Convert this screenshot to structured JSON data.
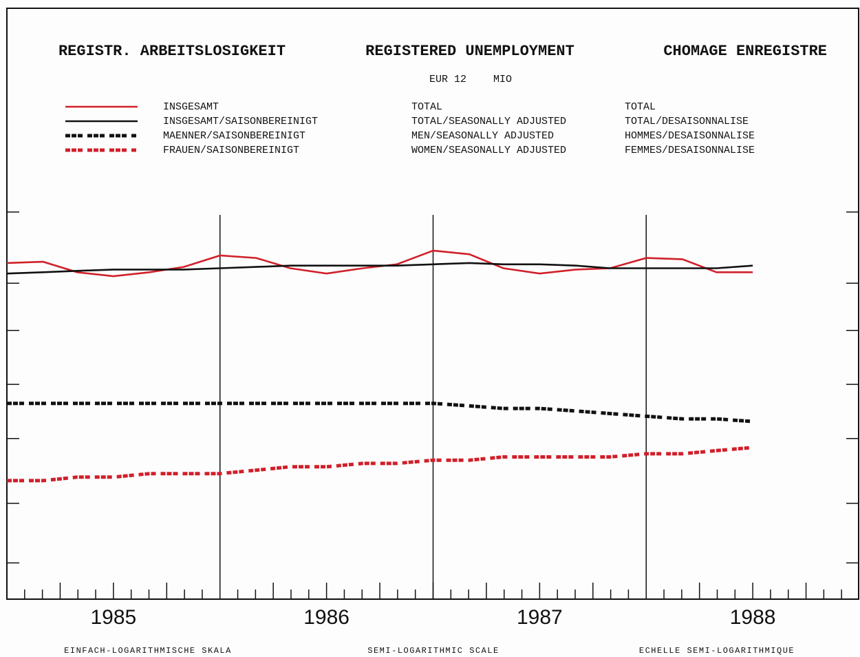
{
  "chart_data": {
    "type": "line",
    "title": [
      "REGISTR. ARBEITSLOSIGKEIT",
      "REGISTERED UNEMPLOYMENT",
      "CHOMAGE ENREGISTRE"
    ],
    "subtitle": [
      "EUR 12",
      "MIO"
    ],
    "footer": [
      "EINFACH-LOGARITHMISCHE SKALA",
      "SEMI-LOGARITHMIC SCALE",
      "ECHELLE SEMI-LOGARITHMIQUE"
    ],
    "x": [
      1985,
      1985.17,
      1985.33,
      1985.5,
      1985.67,
      1985.83,
      1986,
      1986.17,
      1986.33,
      1986.5,
      1986.67,
      1986.83,
      1987,
      1987.17,
      1987.33,
      1987.5,
      1987.67,
      1987.83,
      1988,
      1988.17,
      1988.33,
      1988.5
    ],
    "xlim": [
      1985,
      1989
    ],
    "xticks": [
      {
        "value": 1985.5,
        "label": "1985"
      },
      {
        "value": 1986.5,
        "label": "1986"
      },
      {
        "value": 1987.5,
        "label": "1987"
      },
      {
        "value": 1988.5,
        "label": "1988"
      }
    ],
    "year_lines": [
      1986,
      1987,
      1988
    ],
    "ylim": [
      3.37,
      55
    ],
    "yticks": [
      21,
      15,
      12,
      9.3,
      7.2,
      5.3,
      4
    ],
    "log_y": true,
    "series": [
      {
        "name": "INSGESAMT",
        "name_en": "TOTAL",
        "name_fr": "TOTAL",
        "color": "#d0202a",
        "dash": false,
        "values": [
          16.5,
          16.6,
          15.8,
          15.5,
          15.8,
          16.2,
          17.1,
          16.9,
          16.1,
          15.7,
          16.1,
          16.4,
          17.5,
          17.2,
          16.1,
          15.7,
          16.0,
          16.1,
          16.9,
          16.8,
          15.8,
          15.8
        ]
      },
      {
        "name": "INSGESAMT/SAISONBEREINIGT",
        "name_en": "TOTAL/SEASONALLY ADJUSTED",
        "name_fr": "TOTAL/DESAISONNALISE",
        "color": "#111111",
        "dash": false,
        "values": [
          15.7,
          15.8,
          15.9,
          16.0,
          16.0,
          16.0,
          16.1,
          16.2,
          16.3,
          16.3,
          16.3,
          16.3,
          16.4,
          16.5,
          16.4,
          16.4,
          16.3,
          16.1,
          16.1,
          16.1,
          16.1,
          16.3
        ]
      },
      {
        "name": "MAENNER/SAISONBEREINIGT",
        "name_en": "MEN/SEASONALLY ADJUSTED",
        "name_fr": "HOMMES/DESAISONNALISE",
        "color": "#111111",
        "dash": true,
        "values": [
          8.5,
          8.5,
          8.5,
          8.5,
          8.5,
          8.5,
          8.5,
          8.5,
          8.5,
          8.5,
          8.5,
          8.5,
          8.5,
          8.4,
          8.3,
          8.3,
          8.2,
          8.1,
          8.0,
          7.9,
          7.9,
          7.8
        ]
      },
      {
        "name": "FRAUEN/SAISONBEREINIGT",
        "name_en": "WOMEN/SEASONALLY ADJUSTED",
        "name_fr": "FEMMES/DESAISONNALISE",
        "color": "#d0202a",
        "dash": true,
        "values": [
          5.9,
          5.9,
          6.0,
          6.0,
          6.1,
          6.1,
          6.1,
          6.2,
          6.3,
          6.3,
          6.4,
          6.4,
          6.5,
          6.5,
          6.6,
          6.6,
          6.6,
          6.6,
          6.7,
          6.7,
          6.8,
          6.9
        ]
      }
    ]
  }
}
